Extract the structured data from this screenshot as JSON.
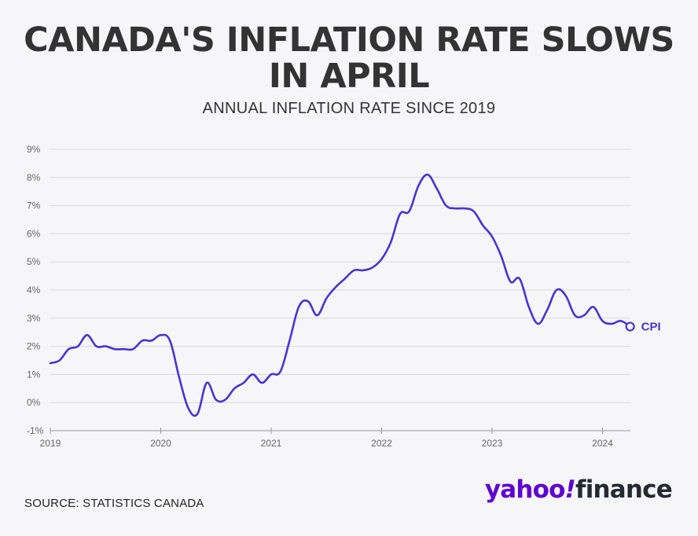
{
  "header": {
    "title": "CANADA'S INFLATION RATE SLOWS IN APRIL",
    "subtitle": "ANNUAL INFLATION RATE SINCE 2019"
  },
  "footer": {
    "source": "SOURCE: STATISTICS CANADA",
    "logo_part1": "yahoo",
    "logo_part2": "!",
    "logo_part3": "finance"
  },
  "colors": {
    "line": "#4a33d6",
    "grid": "#d9d9de",
    "background": "#f6f6f8",
    "logo": "#6001d2"
  },
  "chart_data": {
    "type": "line",
    "title": "CANADA'S INFLATION RATE SLOWS IN APRIL",
    "subtitle": "ANNUAL INFLATION RATE SINCE 2019",
    "ylim": [
      -1,
      9
    ],
    "yticks": [
      -1,
      0,
      1,
      2,
      3,
      4,
      5,
      6,
      7,
      8,
      9
    ],
    "ytick_labels": [
      "-1%",
      "0%",
      "1%",
      "2%",
      "3%",
      "4%",
      "5%",
      "6%",
      "7%",
      "8%",
      "9%"
    ],
    "xticks": [
      "2019",
      "2020",
      "2021",
      "2022",
      "2023",
      "2024"
    ],
    "grid": true,
    "series": [
      {
        "name": "CPI",
        "x": [
          "2019-01",
          "2019-02",
          "2019-03",
          "2019-04",
          "2019-05",
          "2019-06",
          "2019-07",
          "2019-08",
          "2019-09",
          "2019-10",
          "2019-11",
          "2019-12",
          "2020-01",
          "2020-02",
          "2020-03",
          "2020-04",
          "2020-05",
          "2020-06",
          "2020-07",
          "2020-08",
          "2020-09",
          "2020-10",
          "2020-11",
          "2020-12",
          "2021-01",
          "2021-02",
          "2021-03",
          "2021-04",
          "2021-05",
          "2021-06",
          "2021-07",
          "2021-08",
          "2021-09",
          "2021-10",
          "2021-11",
          "2021-12",
          "2022-01",
          "2022-02",
          "2022-03",
          "2022-04",
          "2022-05",
          "2022-06",
          "2022-07",
          "2022-08",
          "2022-09",
          "2022-10",
          "2022-11",
          "2022-12",
          "2023-01",
          "2023-02",
          "2023-03",
          "2023-04",
          "2023-05",
          "2023-06",
          "2023-07",
          "2023-08",
          "2023-09",
          "2023-10",
          "2023-11",
          "2023-12",
          "2024-01",
          "2024-02",
          "2024-03",
          "2024-04"
        ],
        "values": [
          1.4,
          1.5,
          1.9,
          2.0,
          2.4,
          2.0,
          2.0,
          1.9,
          1.9,
          1.9,
          2.2,
          2.2,
          2.4,
          2.2,
          0.9,
          -0.2,
          -0.4,
          0.7,
          0.1,
          0.1,
          0.5,
          0.7,
          1.0,
          0.7,
          1.0,
          1.1,
          2.2,
          3.4,
          3.6,
          3.1,
          3.7,
          4.1,
          4.4,
          4.7,
          4.7,
          4.8,
          5.1,
          5.7,
          6.7,
          6.8,
          7.7,
          8.1,
          7.6,
          7.0,
          6.9,
          6.9,
          6.8,
          6.3,
          5.9,
          5.2,
          4.3,
          4.4,
          3.4,
          2.8,
          3.3,
          4.0,
          3.8,
          3.1,
          3.1,
          3.4,
          2.9,
          2.8,
          2.9,
          2.7
        ]
      }
    ]
  }
}
